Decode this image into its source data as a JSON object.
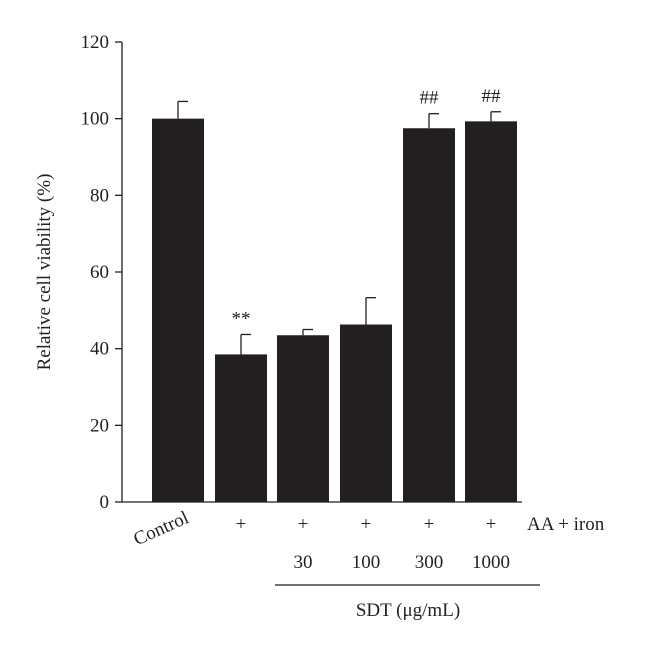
{
  "chart_data": {
    "type": "bar",
    "ylabel": "Relative cell viability (%)",
    "ylim": [
      0,
      120
    ],
    "yticks": [
      0,
      20,
      40,
      60,
      80,
      100,
      120
    ],
    "categories": [
      "Control",
      "+",
      "+",
      "+",
      "+",
      "+"
    ],
    "values": [
      100,
      38.5,
      43.5,
      46.3,
      97.5,
      99.3
    ],
    "errors": [
      4.5,
      5.2,
      1.5,
      7.0,
      3.8,
      2.5
    ],
    "significance": [
      "",
      "**",
      "",
      "",
      "##",
      "##"
    ],
    "treatment_label": "AA + iron",
    "dose_values": [
      "",
      "",
      "30",
      "100",
      "300",
      "1000"
    ],
    "dose_group_label": "SDT (μg/mL)",
    "bar_color": "#231f20"
  }
}
